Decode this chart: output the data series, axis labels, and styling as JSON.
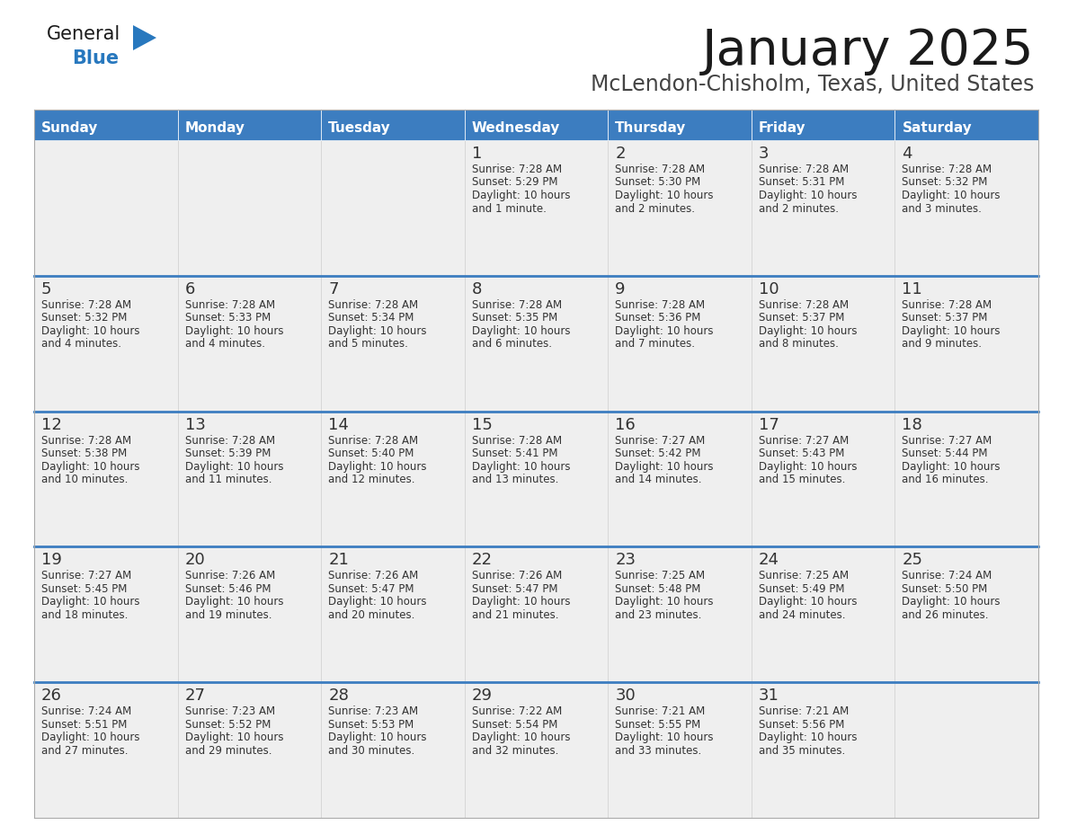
{
  "title": "January 2025",
  "subtitle": "McLendon-Chisholm, Texas, United States",
  "days_of_week": [
    "Sunday",
    "Monday",
    "Tuesday",
    "Wednesday",
    "Thursday",
    "Friday",
    "Saturday"
  ],
  "header_bg": "#3C7DC0",
  "header_text": "#FFFFFF",
  "cell_bg": "#EFEFEF",
  "row_line_color": "#3C7DC0",
  "text_color": "#333333",
  "day_num_color": "#333333",
  "title_color": "#1a1a1a",
  "subtitle_color": "#444444",
  "logo_general_color": "#1a1a1a",
  "logo_blue_color": "#2878BE",
  "calendar": [
    [
      {
        "day": null
      },
      {
        "day": null
      },
      {
        "day": null
      },
      {
        "day": 1,
        "sunrise": "7:28 AM",
        "sunset": "5:29 PM",
        "daylight": "10 hours",
        "daylight2": "and 1 minute."
      },
      {
        "day": 2,
        "sunrise": "7:28 AM",
        "sunset": "5:30 PM",
        "daylight": "10 hours",
        "daylight2": "and 2 minutes."
      },
      {
        "day": 3,
        "sunrise": "7:28 AM",
        "sunset": "5:31 PM",
        "daylight": "10 hours",
        "daylight2": "and 2 minutes."
      },
      {
        "day": 4,
        "sunrise": "7:28 AM",
        "sunset": "5:32 PM",
        "daylight": "10 hours",
        "daylight2": "and 3 minutes."
      }
    ],
    [
      {
        "day": 5,
        "sunrise": "7:28 AM",
        "sunset": "5:32 PM",
        "daylight": "10 hours",
        "daylight2": "and 4 minutes."
      },
      {
        "day": 6,
        "sunrise": "7:28 AM",
        "sunset": "5:33 PM",
        "daylight": "10 hours",
        "daylight2": "and 4 minutes."
      },
      {
        "day": 7,
        "sunrise": "7:28 AM",
        "sunset": "5:34 PM",
        "daylight": "10 hours",
        "daylight2": "and 5 minutes."
      },
      {
        "day": 8,
        "sunrise": "7:28 AM",
        "sunset": "5:35 PM",
        "daylight": "10 hours",
        "daylight2": "and 6 minutes."
      },
      {
        "day": 9,
        "sunrise": "7:28 AM",
        "sunset": "5:36 PM",
        "daylight": "10 hours",
        "daylight2": "and 7 minutes."
      },
      {
        "day": 10,
        "sunrise": "7:28 AM",
        "sunset": "5:37 PM",
        "daylight": "10 hours",
        "daylight2": "and 8 minutes."
      },
      {
        "day": 11,
        "sunrise": "7:28 AM",
        "sunset": "5:37 PM",
        "daylight": "10 hours",
        "daylight2": "and 9 minutes."
      }
    ],
    [
      {
        "day": 12,
        "sunrise": "7:28 AM",
        "sunset": "5:38 PM",
        "daylight": "10 hours",
        "daylight2": "and 10 minutes."
      },
      {
        "day": 13,
        "sunrise": "7:28 AM",
        "sunset": "5:39 PM",
        "daylight": "10 hours",
        "daylight2": "and 11 minutes."
      },
      {
        "day": 14,
        "sunrise": "7:28 AM",
        "sunset": "5:40 PM",
        "daylight": "10 hours",
        "daylight2": "and 12 minutes."
      },
      {
        "day": 15,
        "sunrise": "7:28 AM",
        "sunset": "5:41 PM",
        "daylight": "10 hours",
        "daylight2": "and 13 minutes."
      },
      {
        "day": 16,
        "sunrise": "7:27 AM",
        "sunset": "5:42 PM",
        "daylight": "10 hours",
        "daylight2": "and 14 minutes."
      },
      {
        "day": 17,
        "sunrise": "7:27 AM",
        "sunset": "5:43 PM",
        "daylight": "10 hours",
        "daylight2": "and 15 minutes."
      },
      {
        "day": 18,
        "sunrise": "7:27 AM",
        "sunset": "5:44 PM",
        "daylight": "10 hours",
        "daylight2": "and 16 minutes."
      }
    ],
    [
      {
        "day": 19,
        "sunrise": "7:27 AM",
        "sunset": "5:45 PM",
        "daylight": "10 hours",
        "daylight2": "and 18 minutes."
      },
      {
        "day": 20,
        "sunrise": "7:26 AM",
        "sunset": "5:46 PM",
        "daylight": "10 hours",
        "daylight2": "and 19 minutes."
      },
      {
        "day": 21,
        "sunrise": "7:26 AM",
        "sunset": "5:47 PM",
        "daylight": "10 hours",
        "daylight2": "and 20 minutes."
      },
      {
        "day": 22,
        "sunrise": "7:26 AM",
        "sunset": "5:47 PM",
        "daylight": "10 hours",
        "daylight2": "and 21 minutes."
      },
      {
        "day": 23,
        "sunrise": "7:25 AM",
        "sunset": "5:48 PM",
        "daylight": "10 hours",
        "daylight2": "and 23 minutes."
      },
      {
        "day": 24,
        "sunrise": "7:25 AM",
        "sunset": "5:49 PM",
        "daylight": "10 hours",
        "daylight2": "and 24 minutes."
      },
      {
        "day": 25,
        "sunrise": "7:24 AM",
        "sunset": "5:50 PM",
        "daylight": "10 hours",
        "daylight2": "and 26 minutes."
      }
    ],
    [
      {
        "day": 26,
        "sunrise": "7:24 AM",
        "sunset": "5:51 PM",
        "daylight": "10 hours",
        "daylight2": "and 27 minutes."
      },
      {
        "day": 27,
        "sunrise": "7:23 AM",
        "sunset": "5:52 PM",
        "daylight": "10 hours",
        "daylight2": "and 29 minutes."
      },
      {
        "day": 28,
        "sunrise": "7:23 AM",
        "sunset": "5:53 PM",
        "daylight": "10 hours",
        "daylight2": "and 30 minutes."
      },
      {
        "day": 29,
        "sunrise": "7:22 AM",
        "sunset": "5:54 PM",
        "daylight": "10 hours",
        "daylight2": "and 32 minutes."
      },
      {
        "day": 30,
        "sunrise": "7:21 AM",
        "sunset": "5:55 PM",
        "daylight": "10 hours",
        "daylight2": "and 33 minutes."
      },
      {
        "day": 31,
        "sunrise": "7:21 AM",
        "sunset": "5:56 PM",
        "daylight": "10 hours",
        "daylight2": "and 35 minutes."
      },
      {
        "day": null
      }
    ]
  ]
}
